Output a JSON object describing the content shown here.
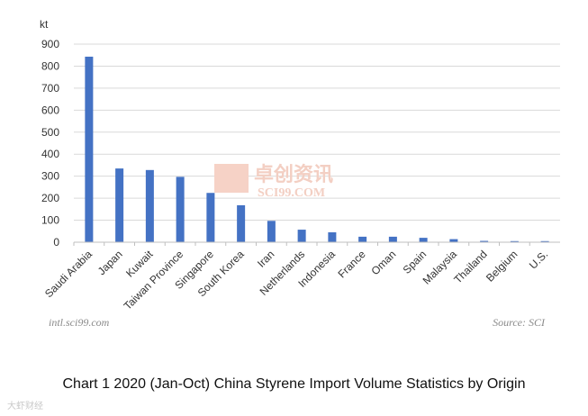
{
  "chart_data": {
    "type": "bar",
    "unit_label": "kt",
    "categories": [
      "Saudi Arabia",
      "Japan",
      "Kuwait",
      "Taiwan Province",
      "Singapore",
      "South Korea",
      "Iran",
      "Netherlands",
      "Indonesia",
      "France",
      "Oman",
      "Spain",
      "Malaysia",
      "Thailand",
      "Belgium",
      "U.S."
    ],
    "values": [
      843,
      335,
      328,
      297,
      224,
      168,
      97,
      57,
      45,
      25,
      25,
      20,
      14,
      6,
      5,
      5
    ],
    "ylim": [
      0,
      900
    ],
    "yticks": [
      0,
      100,
      200,
      300,
      400,
      500,
      600,
      700,
      800,
      900
    ],
    "grid": true,
    "bar_color": "#4472c4",
    "grid_color": "#d9d9d9"
  },
  "watermark": {
    "chinese": "卓创资讯",
    "english": "SCI99.COM",
    "color": "#f2c9bd"
  },
  "footer": {
    "left_credit": "intl.sci99.com",
    "source": "Source: SCI"
  },
  "caption": "Chart 1 2020 (Jan-Oct) China Styrene Import Volume Statistics by Origin",
  "corner_mark": "大虾财经"
}
